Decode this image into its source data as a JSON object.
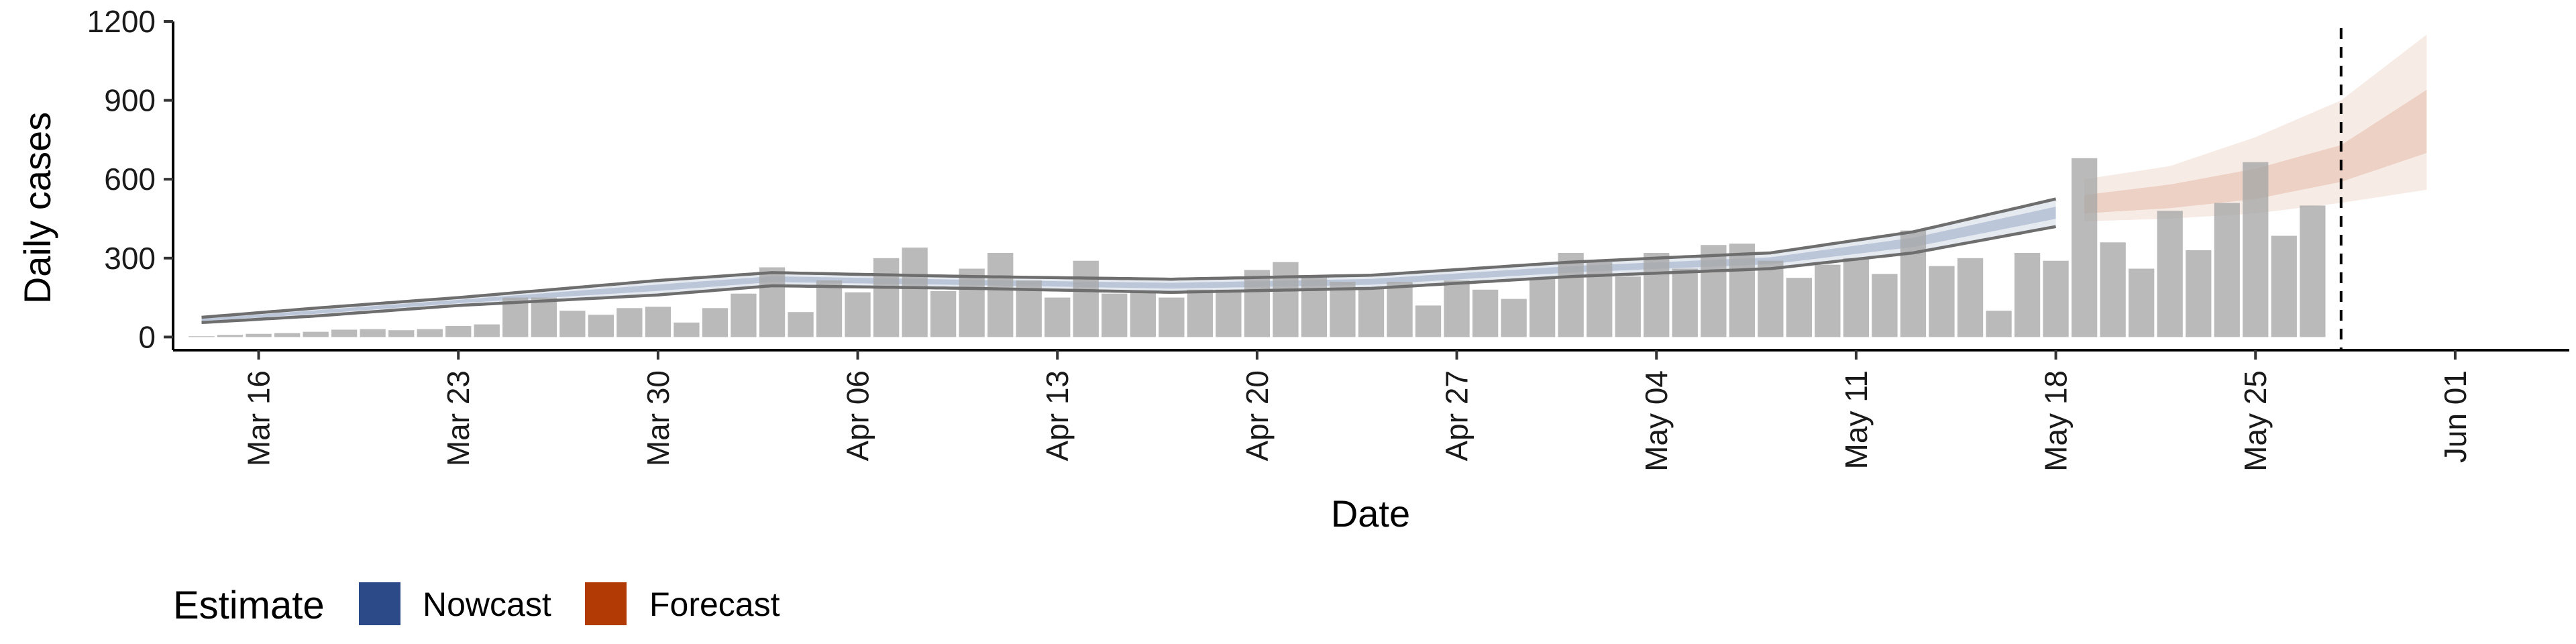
{
  "chart_data": {
    "type": "bar",
    "xlabel": "Date",
    "ylabel": "Daily cases",
    "ylim": [
      -50,
      1200
    ],
    "yticks": [
      0,
      300,
      600,
      900,
      1200
    ],
    "x_range": [
      "2020-03-13",
      "2020-06-05"
    ],
    "x_ticks": [
      {
        "date": "2020-03-16",
        "label": "Mar 16"
      },
      {
        "date": "2020-03-23",
        "label": "Mar 23"
      },
      {
        "date": "2020-03-30",
        "label": "Mar 30"
      },
      {
        "date": "2020-04-06",
        "label": "Apr 06"
      },
      {
        "date": "2020-04-13",
        "label": "Apr 13"
      },
      {
        "date": "2020-04-20",
        "label": "Apr 20"
      },
      {
        "date": "2020-04-27",
        "label": "Apr 27"
      },
      {
        "date": "2020-05-04",
        "label": "May 04"
      },
      {
        "date": "2020-05-11",
        "label": "May 11"
      },
      {
        "date": "2020-05-18",
        "label": "May 18"
      },
      {
        "date": "2020-05-25",
        "label": "May 25"
      },
      {
        "date": "2020-06-01",
        "label": "Jun 01"
      }
    ],
    "reported_cases": {
      "start_date": "2020-03-14",
      "values": [
        3,
        8,
        12,
        15,
        20,
        28,
        30,
        26,
        30,
        42,
        48,
        150,
        150,
        100,
        85,
        110,
        115,
        55,
        110,
        165,
        265,
        95,
        215,
        170,
        300,
        340,
        175,
        260,
        320,
        215,
        150,
        290,
        165,
        170,
        150,
        180,
        180,
        255,
        285,
        225,
        210,
        190,
        210,
        120,
        215,
        180,
        145,
        225,
        320,
        285,
        230,
        320,
        260,
        350,
        355,
        290,
        225,
        275,
        300,
        240,
        405,
        270,
        300,
        100,
        320,
        290,
        680,
        360,
        260,
        480,
        330,
        510,
        665,
        385,
        500
      ]
    },
    "series": [
      {
        "name": "Nowcast",
        "color": "#2c4a87",
        "start_date": "2020-03-14",
        "end_date": "2020-05-18",
        "knots": [
          {
            "date": "2020-03-14",
            "lower": 55,
            "upper": 75
          },
          {
            "date": "2020-03-18",
            "lower": 80,
            "upper": 110
          },
          {
            "date": "2020-03-23",
            "lower": 120,
            "upper": 150
          },
          {
            "date": "2020-03-30",
            "lower": 160,
            "upper": 215
          },
          {
            "date": "2020-04-03",
            "lower": 195,
            "upper": 245
          },
          {
            "date": "2020-04-10",
            "lower": 185,
            "upper": 230
          },
          {
            "date": "2020-04-17",
            "lower": 170,
            "upper": 220
          },
          {
            "date": "2020-04-24",
            "lower": 185,
            "upper": 235
          },
          {
            "date": "2020-05-01",
            "lower": 230,
            "upper": 285
          },
          {
            "date": "2020-05-08",
            "lower": 260,
            "upper": 320
          },
          {
            "date": "2020-05-13",
            "lower": 320,
            "upper": 400
          },
          {
            "date": "2020-05-18",
            "lower": 420,
            "upper": 525
          }
        ]
      },
      {
        "name": "Forecast",
        "color": "#b23a05",
        "start_date": "2020-05-19",
        "end_date": "2020-05-31",
        "knots": [
          {
            "date": "2020-05-19",
            "lower90": 440,
            "lower50": 470,
            "upper50": 540,
            "upper90": 600
          },
          {
            "date": "2020-05-22",
            "lower90": 450,
            "lower50": 490,
            "upper50": 580,
            "upper90": 650
          },
          {
            "date": "2020-05-25",
            "lower90": 470,
            "lower50": 525,
            "upper50": 640,
            "upper90": 760
          },
          {
            "date": "2020-05-28",
            "lower90": 510,
            "lower50": 590,
            "upper50": 730,
            "upper90": 900
          },
          {
            "date": "2020-05-31",
            "lower90": 560,
            "lower50": 700,
            "upper50": 940,
            "upper90": 1150
          }
        ]
      }
    ],
    "forecast_date": "2020-05-28",
    "legend": {
      "title": "Estimate",
      "position": "bottom-left",
      "items": [
        {
          "label": "Nowcast",
          "color": "#2c4a87"
        },
        {
          "label": "Forecast",
          "color": "#b23a05"
        }
      ]
    }
  }
}
